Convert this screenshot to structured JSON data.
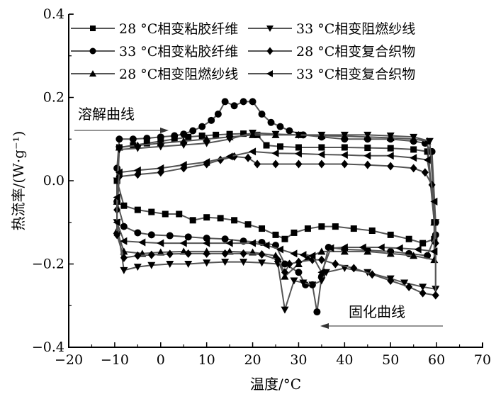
{
  "chart_data": {
    "type": "line",
    "xlabel": "温度/°C",
    "ylabel": "热流率/(W·g⁻¹)",
    "xlim": [
      -20,
      70
    ],
    "ylim": [
      -0.4,
      0.4
    ],
    "xticks": [
      "−20",
      "−10",
      "0",
      "10",
      "20",
      "30",
      "40",
      "50",
      "60",
      "70"
    ],
    "yticks": [
      "−0.4",
      "−0.2",
      "0.0",
      "0.2",
      "0.4"
    ],
    "grid": false,
    "legend_placement": "top",
    "line_color": "#555555",
    "marker_color": "#000000",
    "annotations": [
      {
        "text": "溶解曲线",
        "arrow": "right"
      },
      {
        "text": "固化曲线",
        "arrow": "left"
      }
    ],
    "series": [
      {
        "name": "28 °C相变粘胶纤维",
        "marker": "square",
        "heating": [
          [
            -9.5,
            0.0
          ],
          [
            -9,
            0.08
          ],
          [
            -6,
            0.085
          ],
          [
            -3,
            0.09
          ],
          [
            0,
            0.095
          ],
          [
            3,
            0.1
          ],
          [
            6,
            0.105
          ],
          [
            9,
            0.108
          ],
          [
            12,
            0.11
          ],
          [
            15,
            0.112
          ],
          [
            18,
            0.113
          ],
          [
            21,
            0.11
          ],
          [
            23,
            0.085
          ],
          [
            26,
            0.082
          ],
          [
            30,
            0.08
          ],
          [
            35,
            0.08
          ],
          [
            40,
            0.08
          ],
          [
            45,
            0.079
          ],
          [
            50,
            0.078
          ],
          [
            55,
            0.075
          ],
          [
            58,
            0.07
          ],
          [
            59.5,
            -0.1
          ]
        ],
        "cooling": [
          [
            59.5,
            -0.14
          ],
          [
            57,
            -0.15
          ],
          [
            54,
            -0.14
          ],
          [
            50,
            -0.13
          ],
          [
            46,
            -0.12
          ],
          [
            42,
            -0.115
          ],
          [
            38,
            -0.11
          ],
          [
            35,
            -0.11
          ],
          [
            32,
            -0.115
          ],
          [
            29,
            -0.125
          ],
          [
            27,
            -0.14
          ],
          [
            25,
            -0.13
          ],
          [
            22,
            -0.115
          ],
          [
            19,
            -0.105
          ],
          [
            16,
            -0.095
          ],
          [
            13,
            -0.09
          ],
          [
            10,
            -0.088
          ],
          [
            7,
            -0.095
          ],
          [
            4,
            -0.08
          ],
          [
            1,
            -0.08
          ],
          [
            -2,
            -0.075
          ],
          [
            -5,
            -0.07
          ],
          [
            -8,
            -0.06
          ],
          [
            -9.5,
            0.0
          ]
        ]
      },
      {
        "name": "33 °C相变粘胶纤维",
        "marker": "circle",
        "heating": [
          [
            -9.5,
            0.03
          ],
          [
            -9,
            0.1
          ],
          [
            -6,
            0.1
          ],
          [
            -3,
            0.102
          ],
          [
            0,
            0.105
          ],
          [
            3,
            0.108
          ],
          [
            5,
            0.112
          ],
          [
            7,
            0.12
          ],
          [
            9,
            0.13
          ],
          [
            11,
            0.145
          ],
          [
            12.5,
            0.16
          ],
          [
            14,
            0.19
          ],
          [
            16,
            0.18
          ],
          [
            18,
            0.19
          ],
          [
            20,
            0.19
          ],
          [
            22,
            0.16
          ],
          [
            24,
            0.14
          ],
          [
            26,
            0.13
          ],
          [
            28,
            0.12
          ],
          [
            31,
            0.11
          ],
          [
            35,
            0.105
          ],
          [
            40,
            0.1
          ],
          [
            45,
            0.1
          ],
          [
            50,
            0.1
          ],
          [
            55,
            0.095
          ],
          [
            57.5,
            0.09
          ],
          [
            59,
            0.07
          ],
          [
            59.8,
            -0.1
          ]
        ],
        "cooling": [
          [
            59.8,
            -0.13
          ],
          [
            58,
            -0.18
          ],
          [
            54,
            -0.175
          ],
          [
            50,
            -0.17
          ],
          [
            45,
            -0.167
          ],
          [
            40,
            -0.165
          ],
          [
            36.5,
            -0.16
          ],
          [
            35,
            -0.23
          ],
          [
            34,
            -0.315
          ],
          [
            33,
            -0.25
          ],
          [
            31.5,
            -0.25
          ],
          [
            30,
            -0.22
          ],
          [
            27,
            -0.2
          ],
          [
            25,
            -0.155
          ],
          [
            22,
            -0.148
          ],
          [
            18,
            -0.145
          ],
          [
            14,
            -0.14
          ],
          [
            10,
            -0.138
          ],
          [
            6,
            -0.135
          ],
          [
            2,
            -0.132
          ],
          [
            -2,
            -0.13
          ],
          [
            -5,
            -0.125
          ],
          [
            -8,
            -0.11
          ],
          [
            -9.5,
            -0.05
          ]
        ]
      },
      {
        "name": "28 °C相变阻燃纱线",
        "marker": "triangle-up",
        "heating": [
          [
            -9.5,
            -0.05
          ],
          [
            -9,
            0.08
          ],
          [
            -5,
            0.085
          ],
          [
            0,
            0.09
          ],
          [
            5,
            0.095
          ],
          [
            10,
            0.1
          ],
          [
            15,
            0.105
          ],
          [
            20,
            0.11
          ],
          [
            25,
            0.11
          ],
          [
            30,
            0.11
          ],
          [
            35,
            0.108
          ],
          [
            40,
            0.107
          ],
          [
            45,
            0.105
          ],
          [
            50,
            0.103
          ],
          [
            55,
            0.1
          ],
          [
            58,
            0.095
          ],
          [
            59.5,
            -0.1
          ]
        ],
        "cooling": [
          [
            59.5,
            -0.19
          ],
          [
            55,
            -0.18
          ],
          [
            50,
            -0.175
          ],
          [
            45,
            -0.17
          ],
          [
            40,
            -0.17
          ],
          [
            35,
            -0.17
          ],
          [
            32,
            -0.185
          ],
          [
            30,
            -0.2
          ],
          [
            27,
            -0.23
          ],
          [
            25,
            -0.18
          ],
          [
            20,
            -0.172
          ],
          [
            15,
            -0.17
          ],
          [
            10,
            -0.17
          ],
          [
            5,
            -0.17
          ],
          [
            0,
            -0.172
          ],
          [
            -4,
            -0.175
          ],
          [
            -8,
            -0.17
          ],
          [
            -9.5,
            -0.12
          ]
        ]
      },
      {
        "name": "33 °C相变阻燃纱线",
        "marker": "triangle-down",
        "heating": [
          [
            -9.5,
            0.0
          ],
          [
            -9,
            0.075
          ],
          [
            -5,
            0.078
          ],
          [
            0,
            0.082
          ],
          [
            5,
            0.086
          ],
          [
            10,
            0.09
          ],
          [
            15,
            0.1
          ],
          [
            20,
            0.115
          ],
          [
            25,
            0.112
          ],
          [
            30,
            0.11
          ],
          [
            35,
            0.11
          ],
          [
            40,
            0.11
          ],
          [
            45,
            0.11
          ],
          [
            50,
            0.108
          ],
          [
            55,
            0.105
          ],
          [
            58.5,
            0.095
          ],
          [
            59.8,
            -0.1
          ]
        ],
        "cooling": [
          [
            59.8,
            -0.26
          ],
          [
            57,
            -0.255
          ],
          [
            53,
            -0.245
          ],
          [
            50,
            -0.235
          ],
          [
            45,
            -0.22
          ],
          [
            40,
            -0.21
          ],
          [
            36,
            -0.22
          ],
          [
            35,
            -0.24
          ],
          [
            33,
            -0.25
          ],
          [
            31,
            -0.245
          ],
          [
            29,
            -0.24
          ],
          [
            27,
            -0.31
          ],
          [
            25.5,
            -0.2
          ],
          [
            22,
            -0.197
          ],
          [
            18,
            -0.195
          ],
          [
            14,
            -0.195
          ],
          [
            10,
            -0.197
          ],
          [
            6,
            -0.2
          ],
          [
            2,
            -0.2
          ],
          [
            -2,
            -0.203
          ],
          [
            -5,
            -0.207
          ],
          [
            -8,
            -0.215
          ],
          [
            -9.5,
            -0.1
          ]
        ]
      },
      {
        "name": "28 °C相变复合织物",
        "marker": "diamond",
        "heating": [
          [
            -9.5,
            -0.07
          ],
          [
            -9,
            0.01
          ],
          [
            -5,
            0.015
          ],
          [
            0,
            0.02
          ],
          [
            5,
            0.03
          ],
          [
            10,
            0.04
          ],
          [
            13,
            0.05
          ],
          [
            16,
            0.058
          ],
          [
            19,
            0.055
          ],
          [
            21,
            0.04
          ],
          [
            25,
            0.04
          ],
          [
            30,
            0.04
          ],
          [
            35,
            0.04
          ],
          [
            40,
            0.04
          ],
          [
            45,
            0.038
          ],
          [
            50,
            0.035
          ],
          [
            55,
            0.03
          ],
          [
            57.5,
            0.02
          ],
          [
            59,
            -0.01
          ],
          [
            59.8,
            -0.15
          ]
        ],
        "cooling": [
          [
            59.8,
            -0.275
          ],
          [
            57,
            -0.27
          ],
          [
            54,
            -0.255
          ],
          [
            50,
            -0.24
          ],
          [
            46,
            -0.225
          ],
          [
            42,
            -0.21
          ],
          [
            38,
            -0.2
          ],
          [
            35,
            -0.19
          ],
          [
            33,
            -0.19
          ],
          [
            30,
            -0.195
          ],
          [
            28,
            -0.2
          ],
          [
            27,
            -0.22
          ],
          [
            25.5,
            -0.19
          ],
          [
            22,
            -0.177
          ],
          [
            18,
            -0.175
          ],
          [
            14,
            -0.175
          ],
          [
            10,
            -0.175
          ],
          [
            6,
            -0.175
          ],
          [
            2,
            -0.176
          ],
          [
            -2,
            -0.178
          ],
          [
            -5,
            -0.18
          ],
          [
            -8,
            -0.185
          ],
          [
            -9.5,
            -0.13
          ]
        ]
      },
      {
        "name": "33 °C相变复合织物",
        "marker": "triangle-left",
        "heating": [
          [
            -9.5,
            -0.04
          ],
          [
            -9,
            0.02
          ],
          [
            -5,
            0.025
          ],
          [
            0,
            0.03
          ],
          [
            5,
            0.038
          ],
          [
            10,
            0.045
          ],
          [
            15,
            0.058
          ],
          [
            20,
            0.07
          ],
          [
            25,
            0.066
          ],
          [
            30,
            0.065
          ],
          [
            35,
            0.063
          ],
          [
            40,
            0.062
          ],
          [
            45,
            0.06
          ],
          [
            50,
            0.06
          ],
          [
            55,
            0.055
          ],
          [
            58,
            0.05
          ],
          [
            59.5,
            -0.05
          ]
        ],
        "cooling": [
          [
            59.5,
            -0.17
          ],
          [
            56,
            -0.165
          ],
          [
            52,
            -0.162
          ],
          [
            48,
            -0.16
          ],
          [
            44,
            -0.16
          ],
          [
            40,
            -0.16
          ],
          [
            37,
            -0.162
          ],
          [
            35,
            -0.22
          ],
          [
            33,
            -0.18
          ],
          [
            31,
            -0.178
          ],
          [
            29,
            -0.175
          ],
          [
            26,
            -0.165
          ],
          [
            23,
            -0.155
          ],
          [
            20,
            -0.15
          ],
          [
            15,
            -0.15
          ],
          [
            10,
            -0.15
          ],
          [
            5,
            -0.15
          ],
          [
            0,
            -0.15
          ],
          [
            -4,
            -0.148
          ],
          [
            -8,
            -0.145
          ],
          [
            -9.5,
            -0.1
          ]
        ]
      }
    ]
  }
}
